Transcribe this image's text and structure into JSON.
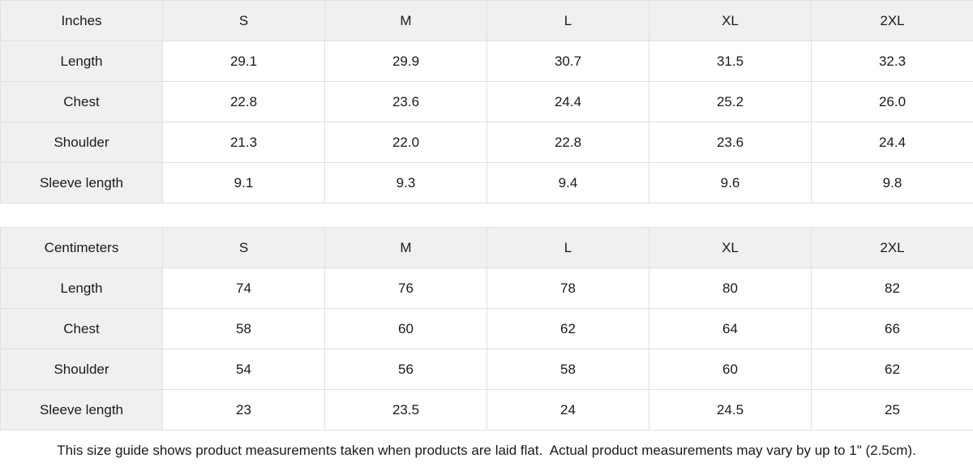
{
  "colors": {
    "header_bg": "#f0f0f1",
    "border": "#e0e0e0",
    "text": "#1a1a1a",
    "cell_bg": "#ffffff"
  },
  "tables": [
    {
      "unit_label": "Inches",
      "columns": [
        "S",
        "M",
        "L",
        "XL",
        "2XL"
      ],
      "rows": [
        {
          "label": "Length",
          "values": [
            "29.1",
            "29.9",
            "30.7",
            "31.5",
            "32.3"
          ]
        },
        {
          "label": "Chest",
          "values": [
            "22.8",
            "23.6",
            "24.4",
            "25.2",
            "26.0"
          ]
        },
        {
          "label": "Shoulder",
          "values": [
            "21.3",
            "22.0",
            "22.8",
            "23.6",
            "24.4"
          ]
        },
        {
          "label": "Sleeve length",
          "values": [
            "9.1",
            "9.3",
            "9.4",
            "9.6",
            "9.8"
          ]
        }
      ]
    },
    {
      "unit_label": "Centimeters",
      "columns": [
        "S",
        "M",
        "L",
        "XL",
        "2XL"
      ],
      "rows": [
        {
          "label": "Length",
          "values": [
            "74",
            "76",
            "78",
            "80",
            "82"
          ]
        },
        {
          "label": "Chest",
          "values": [
            "58",
            "60",
            "62",
            "64",
            "66"
          ]
        },
        {
          "label": "Shoulder",
          "values": [
            "54",
            "56",
            "58",
            "60",
            "62"
          ]
        },
        {
          "label": "Sleeve length",
          "values": [
            "23",
            "23.5",
            "24",
            "24.5",
            "25"
          ]
        }
      ]
    }
  ],
  "footer": {
    "note": "This size guide shows product measurements taken when products are laid flat.  Actual product measurements may vary by up to 1\" (2.5cm)."
  }
}
